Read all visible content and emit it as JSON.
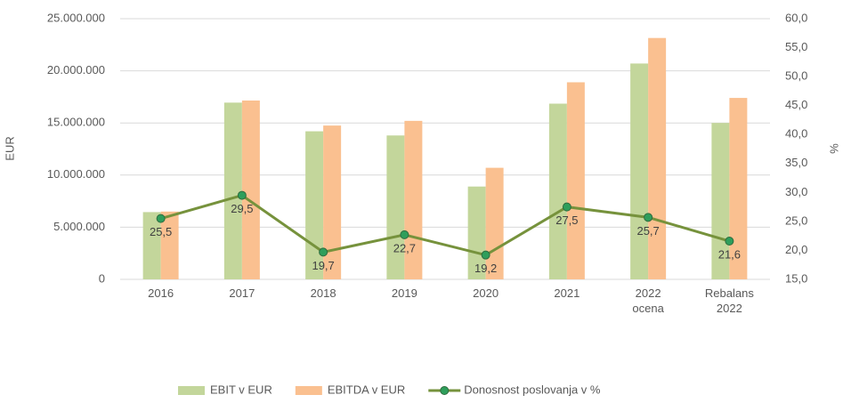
{
  "chart_data": {
    "type": "bar_line",
    "categories": [
      "2016",
      "2017",
      "2018",
      "2019",
      "2020",
      "2021",
      "2022 ocena",
      "Rebalans 2022"
    ],
    "series": [
      {
        "name": "EBIT v EUR",
        "color": "#c3d69b",
        "type": "bar",
        "values": [
          6450000,
          16950000,
          14200000,
          13800000,
          8900000,
          16850000,
          20700000,
          15000000
        ]
      },
      {
        "name": "EBITDA v EUR",
        "color": "#fac090",
        "type": "bar",
        "values": [
          6500000,
          17150000,
          14750000,
          15200000,
          10700000,
          18900000,
          23150000,
          17400000
        ]
      },
      {
        "name": "Donosnost poslovanja v %",
        "color": "#76923c",
        "marker_color": "#2e9e5b",
        "type": "line",
        "axis": "y2",
        "values": [
          25.5,
          29.5,
          19.7,
          22.7,
          19.2,
          27.5,
          25.7,
          21.6
        ],
        "value_labels": [
          "25,5",
          "29,5",
          "19,7",
          "22,7",
          "19,2",
          "27,5",
          "25,7",
          "21,6"
        ]
      }
    ],
    "ylabel": "EUR",
    "y2label": "%",
    "ylim": [
      0,
      25000000
    ],
    "yticks": [
      0,
      {
        "value": 5000000,
        "label": "5.000.000"
      },
      {
        "value": 10000000,
        "label": "10.000.000"
      },
      {
        "value": 15000000,
        "label": "15.000.000"
      },
      {
        "value": 20000000,
        "label": "20.000.000"
      },
      {
        "value": 25000000,
        "label": "25.000.000"
      }
    ],
    "y2lim": [
      15,
      60
    ],
    "y2ticks": [
      {
        "value": 15,
        "label": "15,0"
      },
      {
        "value": 20,
        "label": "20,0"
      },
      {
        "value": 25,
        "label": "25,0"
      },
      {
        "value": 30,
        "label": "30,0"
      },
      {
        "value": 35,
        "label": "35,0"
      },
      {
        "value": 40,
        "label": "40,0"
      },
      {
        "value": 45,
        "label": "45,0"
      },
      {
        "value": 50,
        "label": "50,0"
      },
      {
        "value": 55,
        "label": "55,0"
      },
      {
        "value": 60,
        "label": "60,0"
      }
    ],
    "grid": true,
    "legend": "bottom"
  }
}
